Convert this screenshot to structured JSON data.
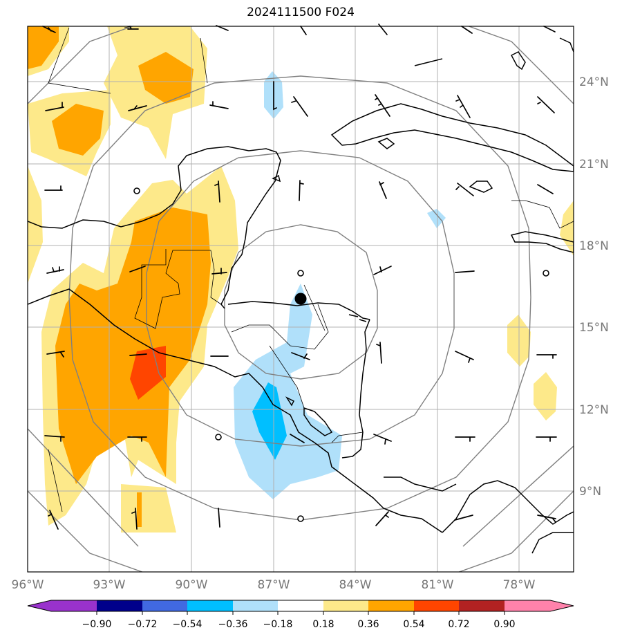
{
  "title": "2024111500 F024",
  "map": {
    "lon_range": [
      -96,
      -76
    ],
    "lat_range": [
      6,
      26
    ],
    "center": {
      "lon": -86,
      "lat": 16
    },
    "lon_ticks": [
      "96°W",
      "93°W",
      "90°W",
      "87°W",
      "84°W",
      "81°W",
      "78°W"
    ],
    "lat_ticks": [
      "24°N",
      "21°N",
      "18°N",
      "15°N",
      "12°N",
      "9°N"
    ]
  },
  "colorbar": {
    "levels": [
      "−0.90",
      "−0.72",
      "−0.54",
      "−0.36",
      "−0.18",
      "0.18",
      "0.36",
      "0.54",
      "0.72",
      "0.90"
    ],
    "colors": [
      "#9932cc",
      "#00008b",
      "#4169e1",
      "#00bfff",
      "#b0e0fa",
      "#ffffff",
      "#fde98a",
      "#ffa500",
      "#ff4500",
      "#b22222",
      "#ff82ab"
    ]
  },
  "shading_colors": {
    "pos_light": "#fde98a",
    "pos_mid": "#ffa500",
    "pos_high": "#ff4500",
    "neg_light": "#b0e0fa",
    "neg_mid": "#00bfff"
  }
}
